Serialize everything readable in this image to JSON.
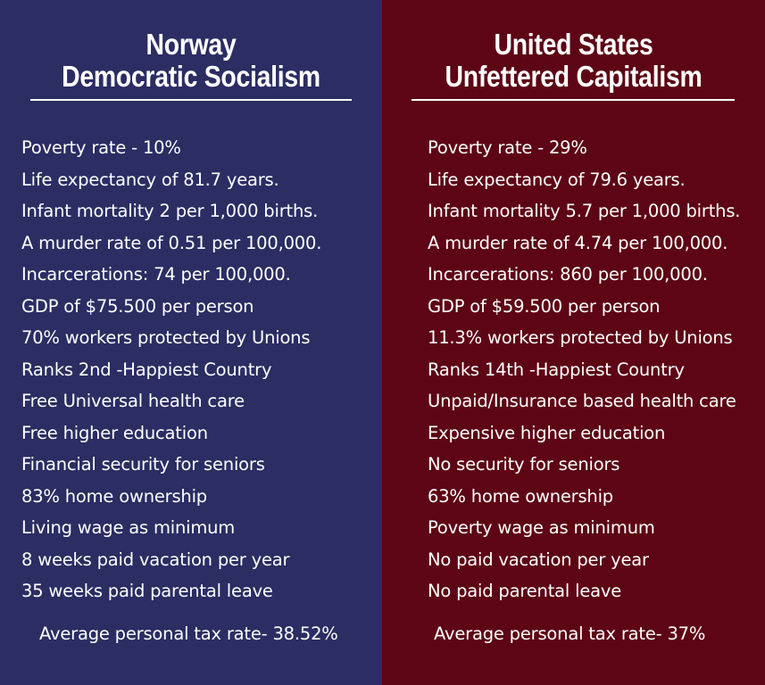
{
  "colors": {
    "left_background": "#2b2d63",
    "right_background": "#5d0515",
    "text": "#ffffff"
  },
  "norway": {
    "title_line1": "Norway",
    "title_line2": "Democratic Socialism",
    "facts": [
      "Poverty rate - 10%",
      "Life expectancy of 81.7 years.",
      "Infant mortality 2 per 1,000 births.",
      "A murder rate of 0.51 per 100,000.",
      "Incarcerations: 74 per 100,000.",
      "GDP of $75.500 per person",
      "70% workers protected by Unions",
      "Ranks 2nd -Happiest Country",
      "Free Universal health care",
      "Free higher education",
      "Financial security for seniors",
      "83% home ownership",
      "Living wage as minimum",
      "8 weeks paid vacation per year",
      "35 weeks paid parental leave"
    ],
    "tax": "Average personal tax rate- 38.52%"
  },
  "usa": {
    "title_line1": "United States",
    "title_line2": "Unfettered Capitalism",
    "facts": [
      "Poverty rate - 29%",
      "Life expectancy of 79.6 years.",
      "Infant mortality 5.7 per 1,000 births.",
      "A murder rate of 4.74 per 100,000.",
      "Incarcerations: 860 per 100,000.",
      "GDP of $59.500 per person",
      "11.3% workers protected by Unions",
      "Ranks 14th -Happiest Country",
      "Unpaid/Insurance based health care",
      "Expensive higher education",
      "No security for seniors",
      "63% home ownership",
      "Poverty wage as minimum",
      "No paid vacation per year",
      "No paid parental leave"
    ],
    "tax": "Average personal tax rate- 37%"
  }
}
